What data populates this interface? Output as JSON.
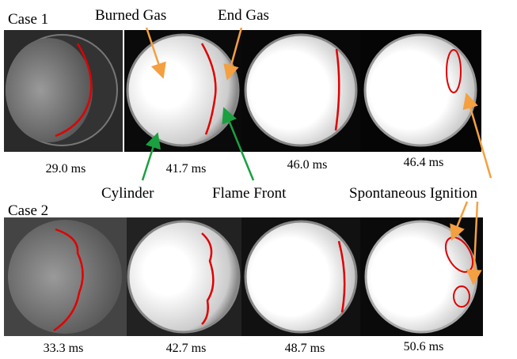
{
  "cases": [
    {
      "label": "Case 1",
      "frames": [
        {
          "time": "29.0 ms"
        },
        {
          "time": "41.7 ms"
        },
        {
          "time": "46.0 ms"
        },
        {
          "time": "46.4 ms"
        }
      ]
    },
    {
      "label": "Case 2",
      "frames": [
        {
          "time": "33.3 ms"
        },
        {
          "time": "42.7 ms"
        },
        {
          "time": "48.7 ms"
        },
        {
          "time": "50.6 ms"
        }
      ]
    }
  ],
  "annotations": {
    "burned_gas": "Burned Gas",
    "end_gas": "End Gas",
    "cylinder": "Cylinder",
    "flame_front": "Flame Front",
    "spontaneous_ignition": "Spontaneous Ignition"
  }
}
